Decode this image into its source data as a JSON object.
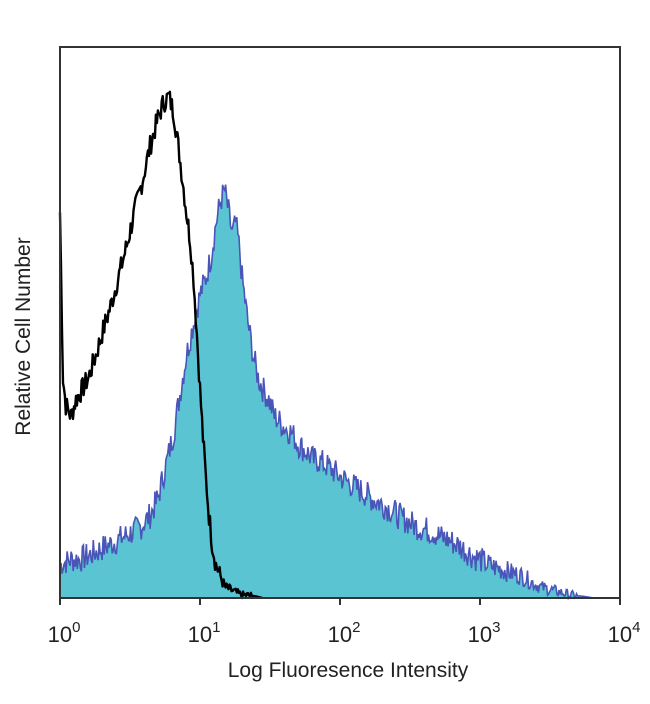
{
  "chart_data": {
    "type": "area",
    "xlabel": "Log Fluoresence Intensity",
    "ylabel": "Relative Cell Number",
    "x_scale": "log",
    "xlim": [
      1,
      10000
    ],
    "ylim": [
      0,
      100
    ],
    "x_ticks": [
      {
        "base": "10",
        "exp": "0",
        "value": 1
      },
      {
        "base": "10",
        "exp": "1",
        "value": 10
      },
      {
        "base": "10",
        "exp": "2",
        "value": 100
      },
      {
        "base": "10",
        "exp": "3",
        "value": 1000
      },
      {
        "base": "10",
        "exp": "4",
        "value": 10000
      }
    ],
    "grid": false,
    "colors": {
      "fill": "#5bc4d3",
      "stroke": "#4a55b8",
      "control": "#000000"
    },
    "series": [
      {
        "style": "outline",
        "x": [
          1.0,
          1.05,
          1.1,
          1.2,
          1.3,
          1.45,
          1.6,
          1.8,
          2.0,
          2.3,
          2.6,
          3.0,
          3.4,
          3.9,
          4.4,
          5.0,
          5.5,
          6.0,
          6.5,
          7.0,
          7.5,
          8.0,
          8.5,
          9.0,
          9.5,
          10.0,
          10.5,
          11.0,
          11.6,
          12.2,
          13.0,
          14.0,
          15.0,
          16.5,
          18.0,
          20.0,
          22.0,
          25.0,
          28.0
        ],
        "values": [
          70,
          40,
          35,
          33,
          36,
          38,
          40,
          44,
          48,
          53,
          58,
          64,
          70,
          76,
          82,
          87,
          90,
          91,
          88,
          82,
          76,
          70,
          65,
          58,
          48,
          38,
          29,
          22,
          15,
          10,
          6,
          4,
          2,
          1.5,
          1,
          0.5,
          0.5,
          0.3,
          0
        ]
      },
      {
        "style": "filled",
        "x": [
          1.0,
          1.2,
          1.4,
          1.7,
          2.0,
          2.4,
          2.8,
          3.3,
          3.8,
          4.4,
          5.0,
          5.7,
          6.5,
          7.3,
          8.0,
          9.0,
          10.0,
          11.0,
          12.0,
          13.0,
          14.0,
          15.0,
          16.0,
          17.0,
          18.0,
          19.0,
          20.0,
          22.0,
          24.0,
          26.0,
          28.0,
          31.0,
          34.0,
          37.0,
          40.0,
          45.0,
          50.0,
          55.0,
          60.0,
          65.0,
          70.0,
          80.0,
          90.0,
          100.0,
          115.0,
          130.0,
          150.0,
          170.0,
          200.0,
          230.0,
          260.0,
          300.0,
          350.0,
          400.0,
          460.0,
          530.0,
          600.0,
          700.0,
          800.0,
          900.0,
          1000.0,
          1150.0,
          1300.0,
          1500.0,
          1700.0,
          2000.0,
          2300.0,
          2700.0,
          3200.0,
          3800.0,
          4500.0,
          5500.0,
          6500.0
        ],
        "values": [
          6,
          7,
          7,
          8,
          9,
          10,
          11,
          12,
          13,
          15,
          18,
          24,
          30,
          38,
          44,
          50,
          55,
          58,
          62,
          68,
          72,
          74,
          70,
          66,
          68,
          64,
          58,
          50,
          44,
          40,
          38,
          36,
          33,
          32,
          31,
          30,
          28,
          27,
          26,
          25,
          25,
          24,
          23,
          22,
          21,
          20,
          19,
          18,
          17,
          16,
          15,
          14,
          13,
          12.5,
          12,
          11,
          10.5,
          9.5,
          8.5,
          7.5,
          7,
          6,
          5.5,
          5,
          4.5,
          4,
          3,
          2,
          1.5,
          1,
          0.5,
          0.3,
          0
        ]
      }
    ]
  }
}
